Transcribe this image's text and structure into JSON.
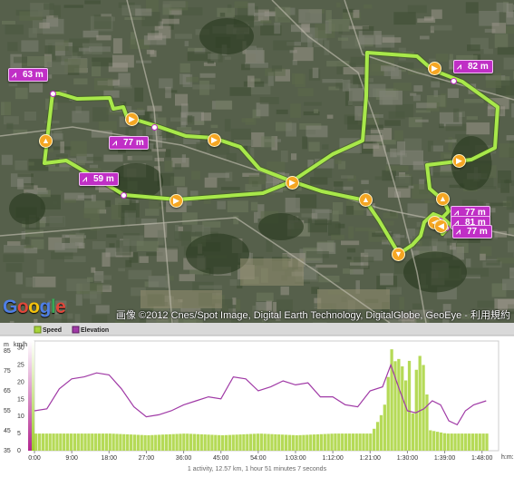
{
  "map": {
    "copyright": "画像 ©2012 Cnes/Spot Image, Digital Earth Technology, DigitalGlobe, GeoEye - 利用規約",
    "logo": [
      "G",
      "o",
      "o",
      "g",
      "l",
      "e"
    ],
    "route_color": "#a8e84a",
    "elevation_markers": [
      {
        "label": "63 m"
      },
      {
        "label": "77 m"
      },
      {
        "label": "59 m"
      },
      {
        "label": "82 m"
      },
      {
        "label": "77 m"
      },
      {
        "label": "81 m"
      },
      {
        "label": "77 m"
      }
    ],
    "direction_arrows": [
      "up",
      "right",
      "right",
      "right",
      "right",
      "up",
      "right",
      "right",
      "down",
      "up",
      "left",
      "left"
    ]
  },
  "chart": {
    "legend": {
      "speed": "Speed",
      "elevation": "Elevation"
    },
    "colors": {
      "speed": "#a8d43a",
      "elevation": "#a03aa6"
    },
    "left_axis_unit": "m",
    "right_axis_unit": "km/h",
    "x_axis_unit": "h:m:s",
    "summary": "1 activity, 12.57 km, 1 hour 51 minutes 7 seconds"
  },
  "chart_data": {
    "type": "area",
    "x_ticks": [
      "0:00",
      "9:00",
      "18:00",
      "27:00",
      "36:00",
      "45:00",
      "54:00",
      "1:03:00",
      "1:12:00",
      "1:21:00",
      "1:30:00",
      "1:39:00",
      "1:48:00"
    ],
    "elevation_axis": {
      "label": "m",
      "ticks": [
        35,
        45,
        55,
        65,
        75,
        85
      ],
      "range": [
        35,
        90
      ]
    },
    "speed_axis": {
      "label": "km/h",
      "ticks": [
        0,
        5,
        10,
        15,
        20,
        25,
        30
      ],
      "range": [
        0,
        32
      ]
    },
    "series": [
      {
        "name": "Elevation",
        "unit": "m",
        "values": [
          [
            0,
            55
          ],
          [
            3,
            56
          ],
          [
            6,
            66
          ],
          [
            9,
            71
          ],
          [
            12,
            72
          ],
          [
            15,
            74
          ],
          [
            18,
            73
          ],
          [
            21,
            66
          ],
          [
            24,
            57
          ],
          [
            27,
            52
          ],
          [
            30,
            53
          ],
          [
            33,
            55
          ],
          [
            36,
            58
          ],
          [
            39,
            60
          ],
          [
            42,
            62
          ],
          [
            45,
            61
          ],
          [
            48,
            72
          ],
          [
            51,
            71
          ],
          [
            54,
            65
          ],
          [
            57,
            67
          ],
          [
            60,
            70
          ],
          [
            63,
            68
          ],
          [
            66,
            69
          ],
          [
            69,
            62
          ],
          [
            72,
            62
          ],
          [
            75,
            58
          ],
          [
            78,
            57
          ],
          [
            81,
            65
          ],
          [
            84,
            67
          ],
          [
            86,
            78
          ],
          [
            88,
            66
          ],
          [
            90,
            55
          ],
          [
            92,
            54
          ],
          [
            94,
            56
          ],
          [
            96,
            60
          ],
          [
            98,
            58
          ],
          [
            100,
            50
          ],
          [
            102,
            48
          ],
          [
            104,
            55
          ],
          [
            106,
            58
          ],
          [
            109,
            60
          ]
        ]
      },
      {
        "name": "Speed",
        "unit": "km/h",
        "values": [
          [
            0,
            5
          ],
          [
            9,
            5
          ],
          [
            18,
            5
          ],
          [
            27,
            4.5
          ],
          [
            36,
            5
          ],
          [
            45,
            4.5
          ],
          [
            54,
            5
          ],
          [
            63,
            4.5
          ],
          [
            72,
            5
          ],
          [
            81,
            5
          ],
          [
            84,
            12
          ],
          [
            86,
            31
          ],
          [
            87,
            24
          ],
          [
            88,
            29
          ],
          [
            89,
            18
          ],
          [
            90,
            28
          ],
          [
            91,
            10
          ],
          [
            92,
            27
          ],
          [
            93,
            28
          ],
          [
            94,
            22
          ],
          [
            95,
            6
          ],
          [
            99,
            5
          ],
          [
            104,
            5
          ],
          [
            109,
            5
          ]
        ]
      }
    ]
  }
}
